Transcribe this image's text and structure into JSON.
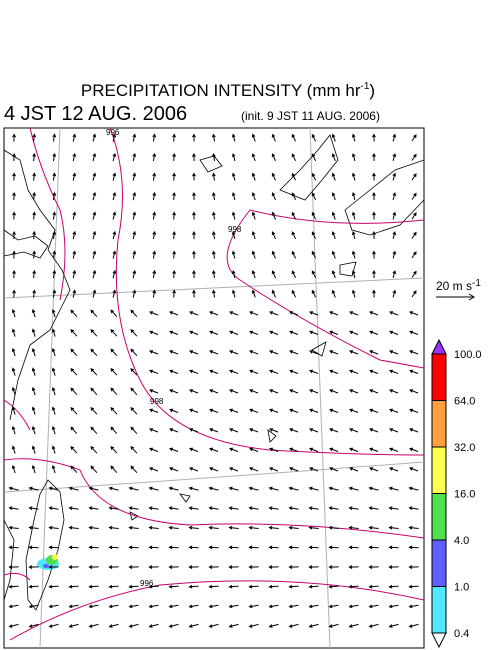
{
  "header": {
    "title": "PRECIPITATION INTENSITY (mm hr",
    "title_sup": "-1",
    "title_end": ")",
    "valid_time": "4 JST 12 AUG. 2006",
    "init_time": "(init. 9 JST 11 AUG. 2006)"
  },
  "map": {
    "contour_labels": [
      "996",
      "998",
      "998",
      "996"
    ]
  },
  "vector_scale": {
    "label": "20 m s",
    "label_sup": "-1"
  },
  "colorbar": {
    "labels": [
      "100.0",
      "64.0",
      "32.0",
      "16.0",
      "4.0",
      "1.0",
      "0.4"
    ],
    "colors": [
      "#9b30ff",
      "#ff0000",
      "#ffa040",
      "#ffff50",
      "#50e050",
      "#6060ff",
      "#50e8ff",
      "#ffffff"
    ]
  }
}
